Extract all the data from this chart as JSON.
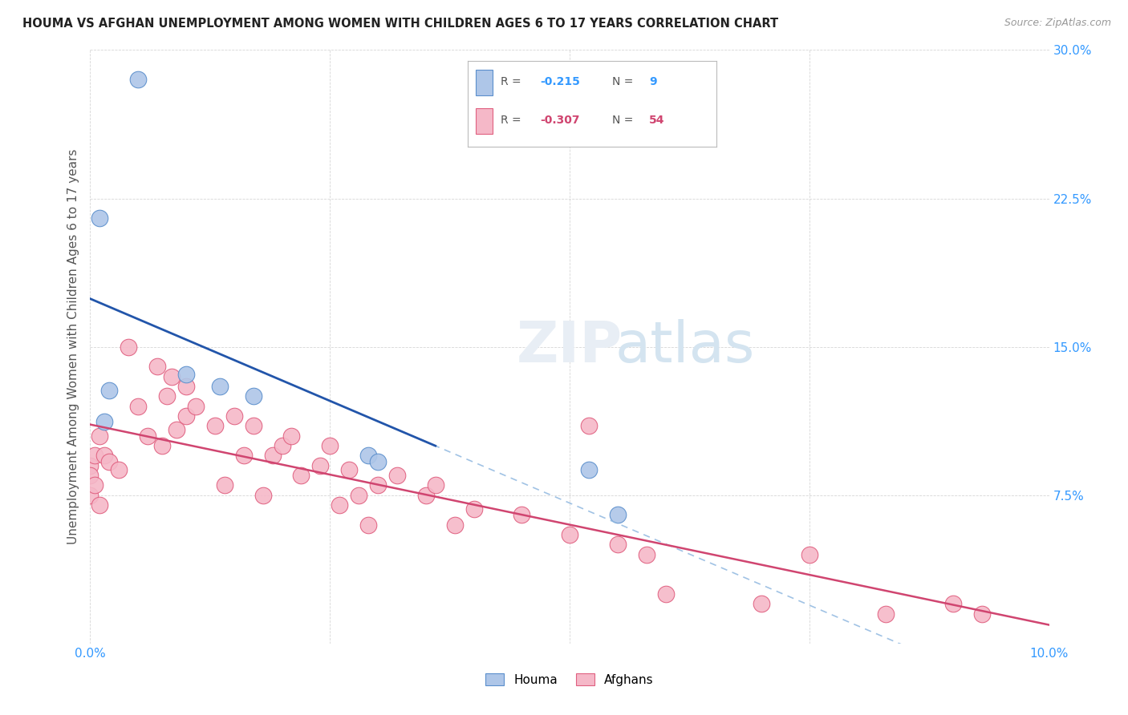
{
  "title": "HOUMA VS AFGHAN UNEMPLOYMENT AMONG WOMEN WITH CHILDREN AGES 6 TO 17 YEARS CORRELATION CHART",
  "source": "Source: ZipAtlas.com",
  "ylabel": "Unemployment Among Women with Children Ages 6 to 17 years",
  "xlim": [
    0,
    10.0
  ],
  "ylim": [
    0,
    30.0
  ],
  "houma_color": "#aec6e8",
  "houma_edge_color": "#5b8fcc",
  "houma_line_color": "#2255aa",
  "afghan_color": "#f5b8c8",
  "afghan_edge_color": "#e06080",
  "afghan_line_color": "#d04570",
  "dashed_line_color": "#90b8e0",
  "houma_x": [
    0.15,
    0.2,
    1.0,
    1.35,
    1.7,
    2.9,
    3.0,
    5.2,
    5.5
  ],
  "houma_y": [
    11.2,
    12.8,
    13.6,
    13.0,
    12.5,
    9.5,
    9.2,
    8.8,
    6.5
  ],
  "houma_outlier_x": [
    0.5
  ],
  "houma_outlier_y": [
    28.5
  ],
  "houma_outlier2_x": [
    0.1
  ],
  "houma_outlier2_y": [
    21.5
  ],
  "afghan_x": [
    0.0,
    0.0,
    0.0,
    0.05,
    0.05,
    0.1,
    0.1,
    0.15,
    0.2,
    0.3,
    0.4,
    0.5,
    0.6,
    0.7,
    0.75,
    0.8,
    0.85,
    0.9,
    1.0,
    1.0,
    1.1,
    1.3,
    1.4,
    1.5,
    1.6,
    1.7,
    1.8,
    1.9,
    2.0,
    2.1,
    2.2,
    2.4,
    2.5,
    2.6,
    2.7,
    2.8,
    2.9,
    3.0,
    3.2,
    3.5,
    3.6,
    3.8,
    4.0,
    4.5,
    5.0,
    5.2,
    5.5,
    5.8,
    6.0,
    7.0,
    7.5,
    8.3,
    9.0,
    9.3
  ],
  "afghan_y": [
    9.0,
    8.5,
    7.5,
    9.5,
    8.0,
    10.5,
    7.0,
    9.5,
    9.2,
    8.8,
    15.0,
    12.0,
    10.5,
    14.0,
    10.0,
    12.5,
    13.5,
    10.8,
    13.0,
    11.5,
    12.0,
    11.0,
    8.0,
    11.5,
    9.5,
    11.0,
    7.5,
    9.5,
    10.0,
    10.5,
    8.5,
    9.0,
    10.0,
    7.0,
    8.8,
    7.5,
    6.0,
    8.0,
    8.5,
    7.5,
    8.0,
    6.0,
    6.8,
    6.5,
    5.5,
    11.0,
    5.0,
    4.5,
    2.5,
    2.0,
    4.5,
    1.5,
    2.0,
    1.5
  ],
  "houma_R": -0.215,
  "houma_N": 9,
  "afghan_R": -0.307,
  "afghan_N": 54,
  "legend_text_color": "#333333",
  "houma_stat_color": "#3399ff",
  "afghan_stat_color": "#d04570"
}
